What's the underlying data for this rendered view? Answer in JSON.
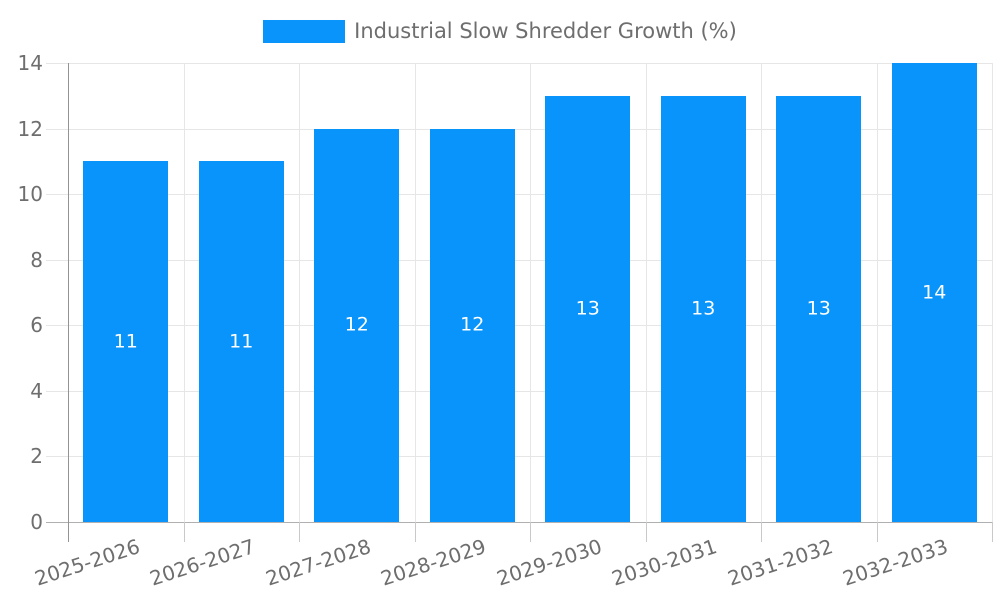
{
  "legend": {
    "label": "Industrial Slow Shredder Growth (%)"
  },
  "chart_data": {
    "type": "bar",
    "title": "Industrial Slow Shredder Growth (%)",
    "categories": [
      "2025-2026",
      "2026-2027",
      "2027-2028",
      "2028-2029",
      "2029-2030",
      "2030-2031",
      "2031-2032",
      "2032-2033"
    ],
    "values": [
      11,
      11,
      12,
      12,
      13,
      13,
      13,
      14
    ],
    "bar_value_labels": [
      "11",
      "11",
      "12",
      "12",
      "13",
      "13",
      "13",
      "14"
    ],
    "y_tick_labels": [
      "0",
      "2",
      "4",
      "6",
      "8",
      "10",
      "12",
      "14"
    ],
    "xlabel": "",
    "ylabel": "",
    "ylim": [
      0,
      14
    ],
    "ytick_step": 2,
    "grid": true,
    "legend_position": "top-center",
    "x_label_rotation_deg": -18
  },
  "colors": {
    "bar": "#0894fa",
    "bar_label": "#ffffff",
    "text": "#6e6e6e",
    "gridline": "#e6e6e6",
    "zero_line": "#b0b0b0",
    "axis_line": "#949494",
    "category_tick": "#c9c9c9",
    "background": "#ffffff"
  }
}
